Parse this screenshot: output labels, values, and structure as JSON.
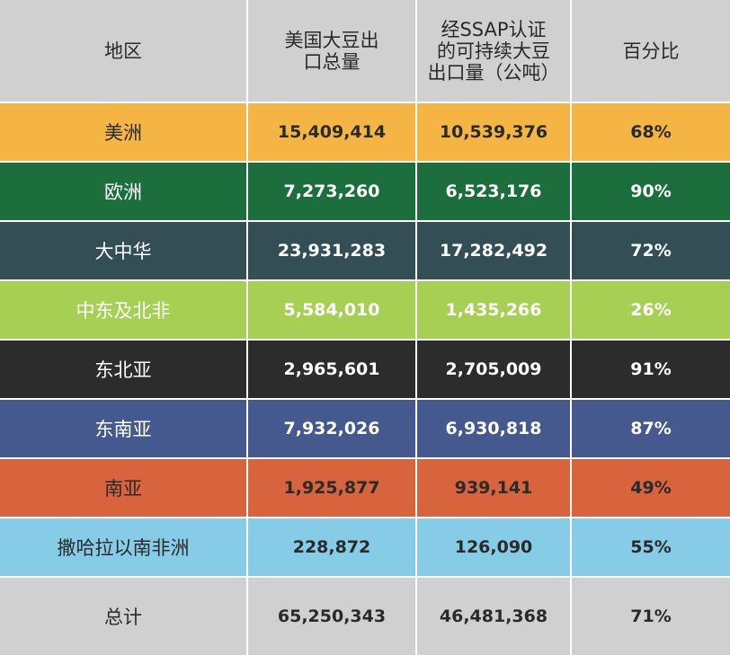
{
  "table": {
    "headers": [
      "地区",
      "美国大豆出口总量",
      "经SSAP认证的可持续大豆出口量（公吨）",
      "百分比"
    ],
    "header_lines": [
      [
        "地区"
      ],
      [
        "美国大豆出",
        "口总量"
      ],
      [
        "经SSAP认证",
        "的可持续大豆",
        "出口量（公吨）"
      ],
      [
        "百分比"
      ]
    ],
    "rows": [
      {
        "region": "美洲",
        "total": "15,409,414",
        "ssap": "10,539,376",
        "pct": "68%",
        "bg": "#f4b544",
        "fg": "#2a2a2a"
      },
      {
        "region": "欧洲",
        "total": "7,273,260",
        "ssap": "6,523,176",
        "pct": "90%",
        "bg": "#1c6e3c",
        "fg": "#ffffff"
      },
      {
        "region": "大中华",
        "total": "23,931,283",
        "ssap": "17,282,492",
        "pct": "72%",
        "bg": "#334f55",
        "fg": "#ffffff"
      },
      {
        "region": "中东及北非",
        "total": "5,584,010",
        "ssap": "1,435,266",
        "pct": "26%",
        "bg": "#a6cf54",
        "fg": "#ffffff"
      },
      {
        "region": "东北亚",
        "total": "2,965,601",
        "ssap": "2,705,009",
        "pct": "91%",
        "bg": "#2b2c2b",
        "fg": "#ffffff"
      },
      {
        "region": "东南亚",
        "total": "7,932,026",
        "ssap": "6,930,818",
        "pct": "87%",
        "bg": "#45598f",
        "fg": "#ffffff"
      },
      {
        "region": "南亚",
        "total": "1,925,877",
        "ssap": "939,141",
        "pct": "49%",
        "bg": "#d7643c",
        "fg": "#2a2a2a"
      },
      {
        "region": "撒哈拉以南非洲",
        "total": "228,872",
        "ssap": "126,090",
        "pct": "55%",
        "bg": "#86cce7",
        "fg": "#2a2a2a"
      }
    ],
    "total_row": {
      "region": "总计",
      "total": "65,250,343",
      "ssap": "46,481,368",
      "pct": "71%"
    }
  }
}
